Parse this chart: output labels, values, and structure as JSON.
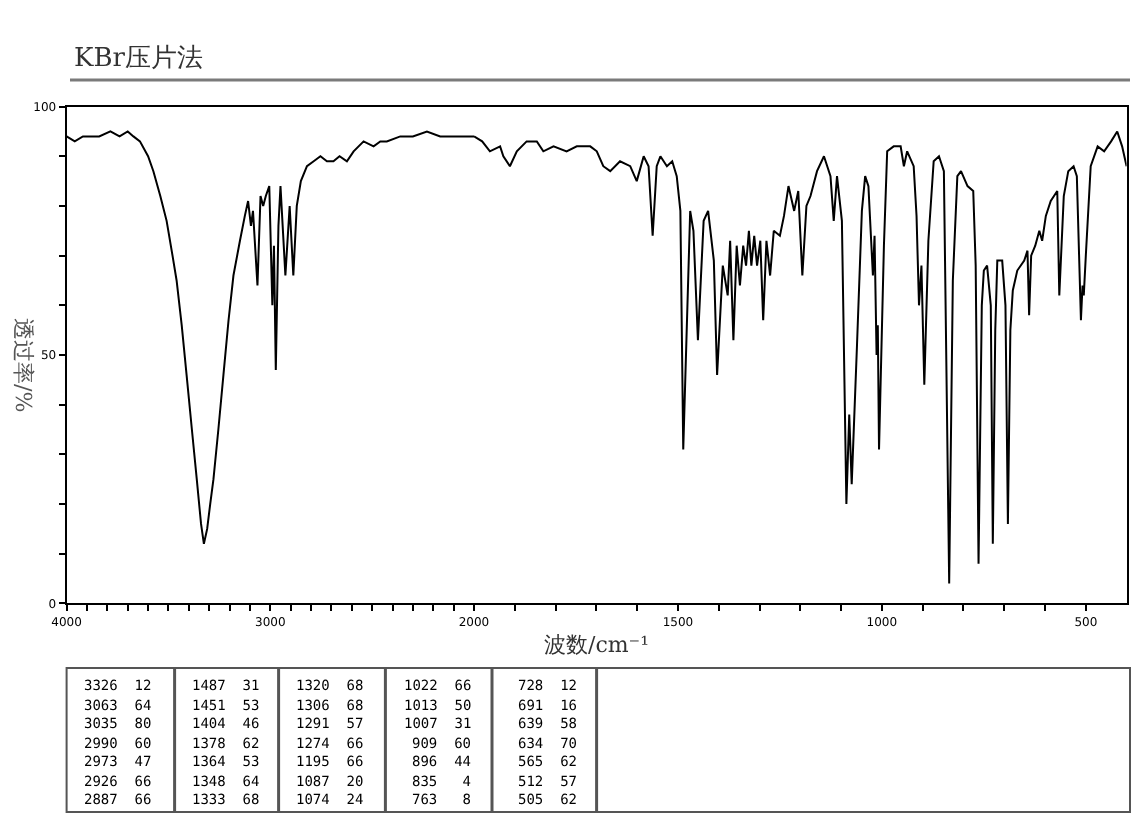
{
  "chart_data": [
    {
      "type": "line",
      "title": "KBr压片法",
      "ylabel": "透过率/%",
      "x": [
        4000,
        3960,
        3920,
        3880,
        3840,
        3785,
        3740,
        3700,
        3672,
        3640,
        3600,
        3574,
        3540,
        3509,
        3480,
        3460,
        3435,
        3411,
        3385,
        3361,
        3340,
        3326,
        3310,
        3295,
        3279,
        3255,
        3230,
        3205,
        3181,
        3149,
        3125,
        3109,
        3095,
        3085,
        3063,
        3048,
        3035,
        3022,
        3005,
        2990,
        2982,
        2973,
        2960,
        2950,
        2926,
        2905,
        2887,
        2870,
        2850,
        2820,
        2787,
        2754,
        2722,
        2690,
        2660,
        2624,
        2591,
        2542,
        2493,
        2460,
        2428,
        2362,
        2300,
        2231,
        2166,
        2100,
        2035,
        2000
      ],
      "series": [
        {
          "color": "#000000",
          "values": [
            94,
            93,
            94,
            94,
            94,
            95,
            94,
            95,
            94,
            93,
            90,
            87,
            82,
            77,
            70,
            65,
            56,
            46,
            35,
            25,
            16,
            12,
            15,
            20,
            25,
            35,
            46,
            57,
            66,
            73,
            78,
            81,
            76,
            79,
            64,
            82,
            80,
            82,
            84,
            60,
            72,
            47,
            76,
            84,
            66,
            80,
            66,
            80,
            85,
            88,
            89,
            90,
            89,
            89,
            90,
            89,
            91,
            93,
            92,
            93,
            93,
            94,
            94,
            95,
            94,
            94,
            94,
            94
          ]
        }
      ],
      "xlim": [
        4000,
        2000
      ],
      "xticks": [
        4000,
        {
          "value": 3900,
          "label": null
        },
        {
          "value": 3800,
          "label": null
        },
        {
          "value": 3700,
          "label": null
        },
        {
          "value": 3600,
          "label": null
        },
        {
          "value": 3500,
          "label": null
        },
        {
          "value": 3400,
          "label": null
        },
        {
          "value": 3300,
          "label": null
        },
        {
          "value": 3200,
          "label": null
        },
        {
          "value": 3100,
          "label": null
        },
        3000,
        {
          "value": 2900,
          "label": null
        },
        {
          "value": 2800,
          "label": null
        },
        {
          "value": 2700,
          "label": null
        },
        {
          "value": 2600,
          "label": null
        },
        {
          "value": 2500,
          "label": null
        },
        {
          "value": 2400,
          "label": null
        },
        {
          "value": 2300,
          "label": null
        },
        {
          "value": 2200,
          "label": null
        },
        {
          "value": 2100,
          "label": null
        },
        {
          "value": 2000,
          "label": null
        }
      ],
      "ylim": [
        0,
        100
      ],
      "yticks": [
        0,
        {
          "value": 10,
          "label": null
        },
        {
          "value": 20,
          "label": null
        },
        {
          "value": 30,
          "label": null
        },
        {
          "value": 40,
          "label": null
        },
        50,
        {
          "value": 60,
          "label": null
        },
        {
          "value": 70,
          "label": null
        },
        {
          "value": 80,
          "label": null
        },
        {
          "value": 90,
          "label": null
        },
        100
      ]
    },
    {
      "type": "line",
      "xlabel": "波数/cm⁻¹",
      "tick_labels": "x",
      "x": [
        2000,
        1980,
        1961,
        1936,
        1928,
        1912,
        1895,
        1871,
        1846,
        1830,
        1805,
        1773,
        1748,
        1715,
        1699,
        1683,
        1666,
        1642,
        1617,
        1601,
        1584,
        1572,
        1562,
        1552,
        1543,
        1527,
        1514,
        1503,
        1494,
        1487,
        1470,
        1462,
        1451,
        1437,
        1426,
        1412,
        1404,
        1390,
        1378,
        1372,
        1364,
        1356,
        1348,
        1340,
        1333,
        1326,
        1320,
        1313,
        1306,
        1298,
        1291,
        1283,
        1274,
        1265,
        1250,
        1240,
        1229,
        1215,
        1205,
        1195,
        1185,
        1175,
        1159,
        1142,
        1126,
        1118,
        1110,
        1098,
        1087,
        1080,
        1074,
        1061,
        1049,
        1041,
        1033,
        1022,
        1018,
        1013,
        1010,
        1007,
        1000,
        995,
        987,
        971,
        954,
        946,
        938,
        922,
        915,
        909,
        903,
        896,
        886,
        873,
        860,
        848,
        835,
        826,
        815,
        806,
        790,
        776,
        770,
        763,
        755,
        750,
        742,
        733,
        728,
        722,
        717,
        705,
        697,
        691,
        685,
        679,
        668,
        651,
        643,
        639,
        634,
        624,
        614,
        607,
        598,
        586,
        570,
        565,
        554,
        543,
        530,
        522,
        512,
        508,
        505,
        500,
        488,
        471,
        455,
        438,
        423,
        411,
        400
      ],
      "series": [
        {
          "color": "#000000",
          "values": [
            94,
            93,
            91,
            92,
            90,
            88,
            91,
            93,
            93,
            91,
            92,
            91,
            92,
            92,
            91,
            88,
            87,
            89,
            88,
            85,
            90,
            88,
            74,
            88,
            90,
            88,
            89,
            86,
            79,
            31,
            79,
            75,
            53,
            77,
            79,
            69,
            46,
            68,
            62,
            73,
            53,
            72,
            64,
            72,
            68,
            75,
            68,
            74,
            68,
            73,
            57,
            73,
            66,
            75,
            74,
            78,
            84,
            79,
            83,
            66,
            80,
            82,
            87,
            90,
            86,
            77,
            86,
            77,
            20,
            38,
            24,
            52,
            79,
            86,
            84,
            66,
            74,
            50,
            56,
            31,
            55,
            72,
            91,
            92,
            92,
            88,
            91,
            88,
            78,
            60,
            68,
            44,
            73,
            89,
            90,
            87,
            4,
            65,
            86,
            87,
            84,
            83,
            68,
            8,
            60,
            67,
            68,
            60,
            12,
            55,
            69,
            69,
            60,
            16,
            55,
            63,
            67,
            69,
            71,
            58,
            70,
            72,
            75,
            73,
            78,
            81,
            83,
            62,
            82,
            87,
            88,
            86,
            57,
            64,
            62,
            70,
            88,
            92,
            91,
            93,
            95,
            92,
            88
          ]
        }
      ],
      "xlim": [
        2000,
        400
      ],
      "xticks": [
        2000,
        {
          "value": 1900,
          "label": null
        },
        {
          "value": 1800,
          "label": null
        },
        {
          "value": 1700,
          "label": null
        },
        {
          "value": 1600,
          "label": null
        },
        1500,
        {
          "value": 1400,
          "label": null
        },
        {
          "value": 1300,
          "label": null
        },
        {
          "value": 1200,
          "label": null
        },
        {
          "value": 1100,
          "label": null
        },
        1000,
        {
          "value": 900,
          "label": null
        },
        {
          "value": 800,
          "label": null
        },
        {
          "value": 700,
          "label": null
        },
        {
          "value": 600,
          "label": null
        },
        500
      ],
      "ylim": [
        0,
        100
      ]
    },
    {
      "type": "other",
      "annotations": [
        "3326 12",
        "3063 64",
        "3035 80",
        "2990 60",
        "2973 47",
        "2926 66",
        "2887 66",
        "1487 31",
        "1451 53",
        "1404 46",
        "1378 62",
        "1364 53",
        "1348 64",
        "1333 68",
        "1320 68",
        "1306 68",
        "1291 57",
        "1274 66",
        "1195 66",
        "1087 20",
        "1074 24",
        "1022 66",
        "1013 50",
        "1007 31",
        "909 60",
        "896 44",
        "835 4",
        "763 8",
        "728 12",
        "691 16",
        "639 58",
        "634 70",
        "565 62",
        "512 57",
        "505 62"
      ]
    }
  ]
}
